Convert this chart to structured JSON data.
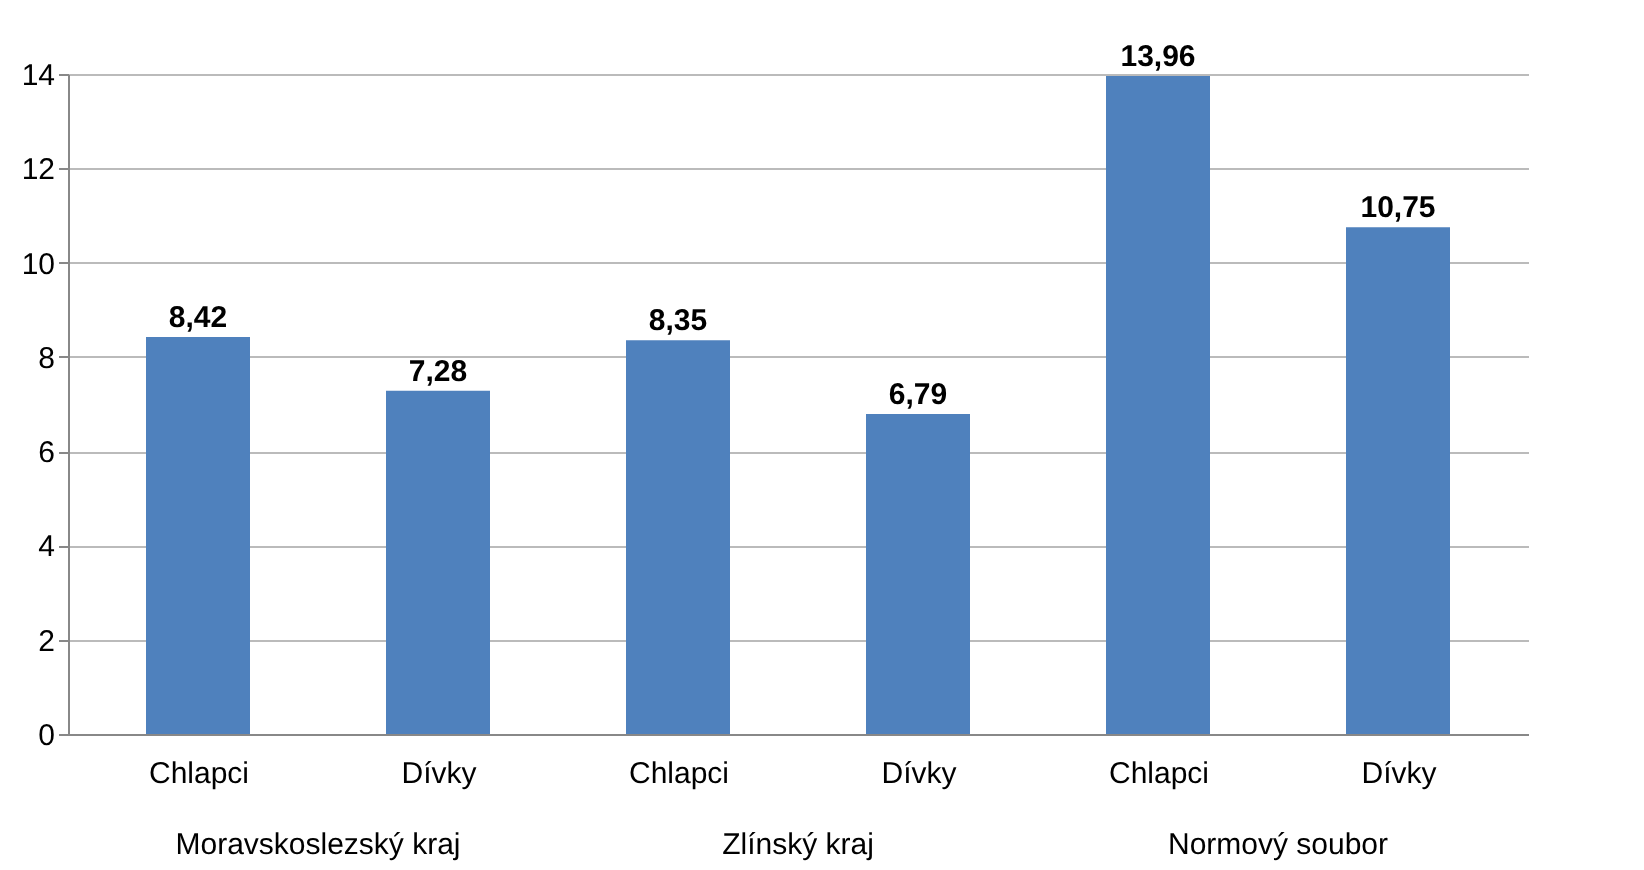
{
  "chart_data": {
    "type": "bar",
    "categories": [
      "Chlapci",
      "Dívky",
      "Chlapci",
      "Dívky",
      "Chlapci",
      "Dívky"
    ],
    "values": [
      8.42,
      7.28,
      8.35,
      6.79,
      13.96,
      10.75
    ],
    "value_labels": [
      "8,42",
      "7,28",
      "8,35",
      "6,79",
      "13,96",
      "10,75"
    ],
    "color": "#4f81bd",
    "ylim": [
      0,
      14
    ],
    "yticks": [
      0,
      2,
      4,
      6,
      8,
      10,
      12,
      14
    ],
    "grid": "y",
    "annotations": [
      "Moravskoslezský kraj",
      "Zlínský kraj",
      "Normový soubor"
    ]
  }
}
